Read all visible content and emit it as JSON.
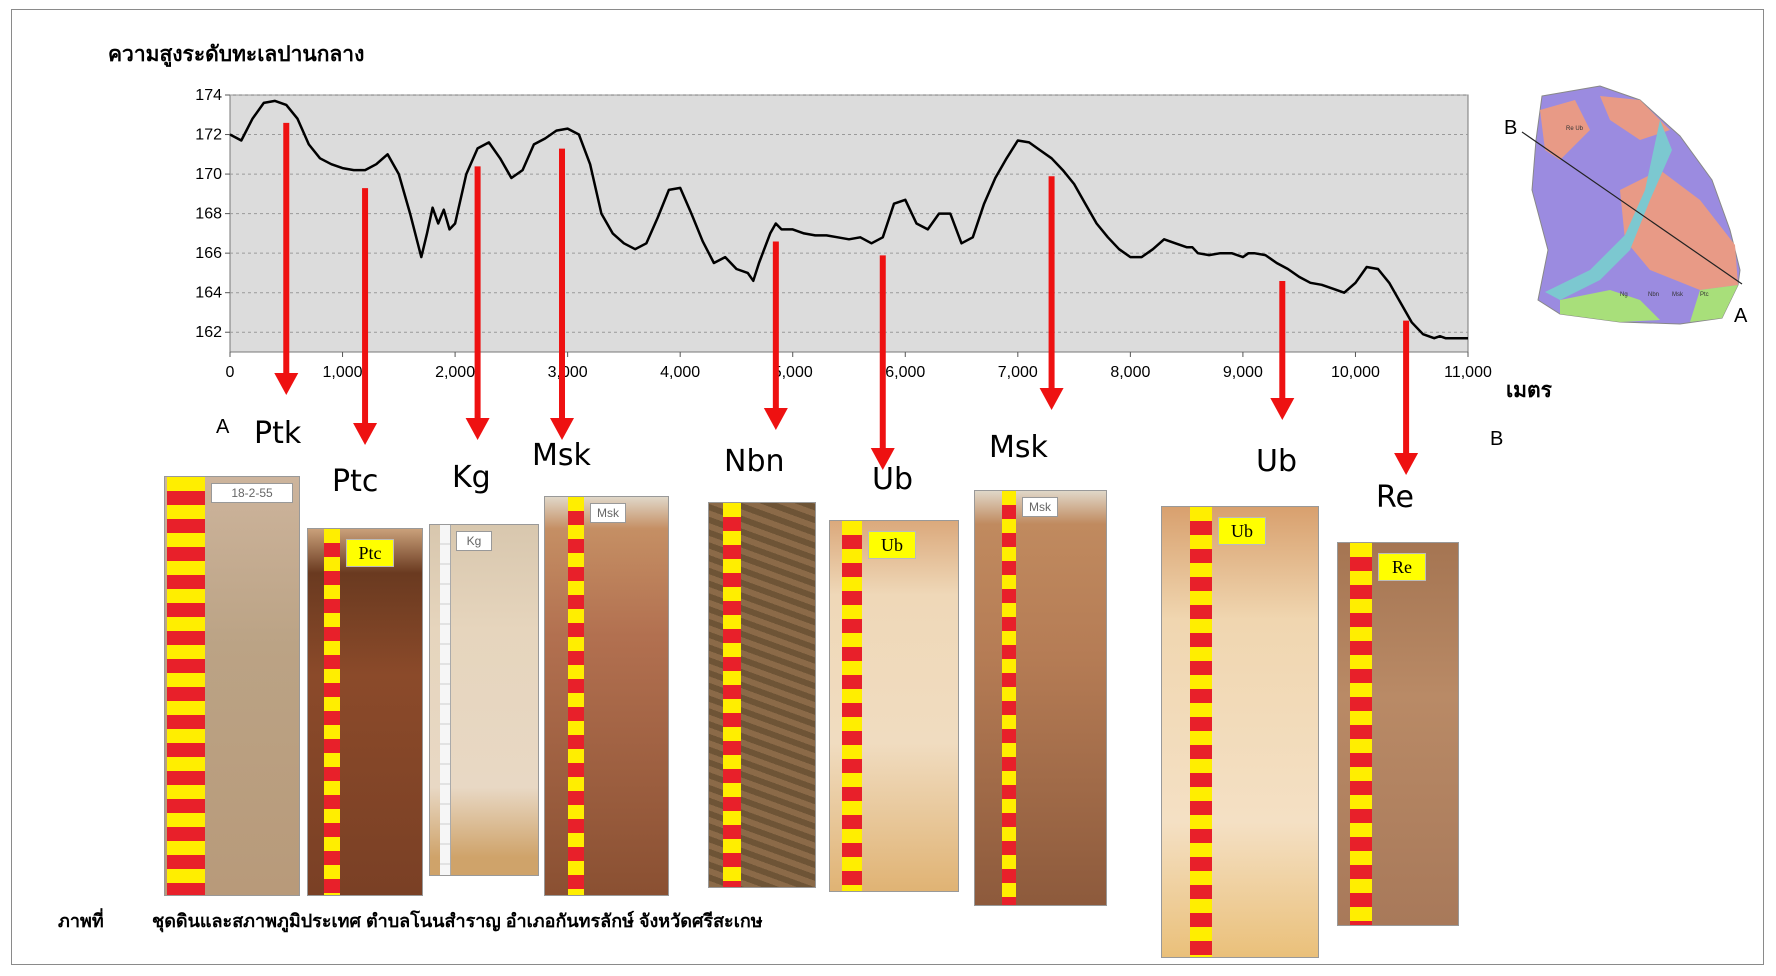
{
  "chart_data": {
    "type": "line",
    "ylabel": "ความสูงระดับทะเลปานกลาง",
    "xunit": "เมตร",
    "xlim": [
      0,
      11000
    ],
    "ylim": [
      161,
      174
    ],
    "x_ticks": [
      "0",
      "1,000",
      "2,000",
      "3,000",
      "4,000",
      "5,000",
      "6,000",
      "7,000",
      "8,000",
      "9,000",
      "10,000",
      "11,000"
    ],
    "y_ticks": [
      "162",
      "164",
      "166",
      "168",
      "170",
      "172",
      "174"
    ],
    "series": [
      {
        "x": [
          0,
          100,
          200,
          300,
          400,
          500,
          600,
          700,
          800,
          900,
          1000,
          1100,
          1200,
          1300,
          1400,
          1500,
          1600,
          1700,
          1750,
          1800,
          1850,
          1900,
          1950,
          2000,
          2100,
          2200,
          2300,
          2400,
          2500,
          2600,
          2700,
          2800,
          2900,
          3000,
          3100,
          3200,
          3300,
          3400,
          3500,
          3600,
          3700,
          3800,
          3900,
          4000,
          4100,
          4200,
          4300,
          4400,
          4500,
          4600,
          4650,
          4700,
          4800,
          4850,
          4900,
          5000,
          5100,
          5200,
          5300,
          5400,
          5500,
          5600,
          5700,
          5800,
          5900,
          6000,
          6100,
          6200,
          6300,
          6400,
          6500,
          6600,
          6700,
          6800,
          6900,
          7000,
          7100,
          7200,
          7300,
          7400,
          7500,
          7600,
          7700,
          7800,
          7900,
          8000,
          8100,
          8200,
          8300,
          8400,
          8500,
          8550,
          8600,
          8700,
          8800,
          8900,
          9000,
          9050,
          9100,
          9200,
          9300,
          9400,
          9500,
          9600,
          9700,
          9800,
          9900,
          10000,
          10100,
          10200,
          10300,
          10400,
          10500,
          10600,
          10700,
          10750,
          10800,
          10900,
          11000
        ],
        "y": [
          172.0,
          171.7,
          172.8,
          173.6,
          173.7,
          173.5,
          172.8,
          171.5,
          170.8,
          170.5,
          170.3,
          170.2,
          170.2,
          170.5,
          171.0,
          170.0,
          168.0,
          165.8,
          167.0,
          168.3,
          167.5,
          168.2,
          167.2,
          167.5,
          170.0,
          171.3,
          171.6,
          170.8,
          169.8,
          170.2,
          171.5,
          171.8,
          172.2,
          172.3,
          172.0,
          170.5,
          168.0,
          167.0,
          166.5,
          166.2,
          166.5,
          167.8,
          169.2,
          169.3,
          168.0,
          166.6,
          165.5,
          165.8,
          165.2,
          165.0,
          164.6,
          165.5,
          167.0,
          167.5,
          167.2,
          167.2,
          167.0,
          166.9,
          166.9,
          166.8,
          166.7,
          166.8,
          166.5,
          166.8,
          168.5,
          168.7,
          167.5,
          167.2,
          168.0,
          168.0,
          166.5,
          166.8,
          168.5,
          169.8,
          170.8,
          171.7,
          171.6,
          171.2,
          170.8,
          170.2,
          169.5,
          168.5,
          167.5,
          166.8,
          166.2,
          165.8,
          165.8,
          166.2,
          166.7,
          166.5,
          166.3,
          166.3,
          166.0,
          165.9,
          166.0,
          166.0,
          165.8,
          166.0,
          166.0,
          165.9,
          165.5,
          165.2,
          164.8,
          164.5,
          164.4,
          164.2,
          164.0,
          164.5,
          165.3,
          165.2,
          164.5,
          163.5,
          162.5,
          161.9,
          161.7,
          161.8,
          161.7,
          161.7,
          161.7
        ]
      }
    ],
    "arrows_x": [
      500,
      1200,
      2200,
      2950,
      4850,
      5800,
      7300,
      9350,
      10450
    ],
    "profile_ends": {
      "start": "A",
      "end": "B"
    }
  },
  "map": {
    "label_b": "B",
    "label_a": "A",
    "unit_labels": [
      "Re Ub",
      "Ng",
      "Nbn",
      "Msk",
      "Ptc"
    ]
  },
  "soils": [
    {
      "name": "Ptk",
      "ruler": "yellow-red",
      "tag_style": "white",
      "tag": "18-2-55"
    },
    {
      "name": "Ptc",
      "ruler": "yellow-red",
      "tag_style": "yellow",
      "tag": "Ptc"
    },
    {
      "name": "Kg",
      "ruler": "white",
      "tag_style": "white",
      "tag": "Kg"
    },
    {
      "name": "Msk",
      "ruler": "yellow-red",
      "tag_style": "white",
      "tag": "Msk"
    },
    {
      "name": "Nbn",
      "ruler": "yellow-red",
      "tag_style": "none",
      "tag": ""
    },
    {
      "name": "Ub",
      "ruler": "yellow-red",
      "tag_style": "yellow",
      "tag": "Ub"
    },
    {
      "name": "Msk",
      "ruler": "yellow-red",
      "tag_style": "white",
      "tag": "Msk"
    },
    {
      "name": "Ub",
      "ruler": "yellow-red",
      "tag_style": "yellow",
      "tag": "Ub"
    },
    {
      "name": "Re",
      "ruler": "yellow-red",
      "tag_style": "yellow",
      "tag": "Re"
    }
  ],
  "caption": {
    "label": "ภาพที่",
    "text": "ชุดดินและสภาพภูมิประเทศ ตำบลโนนสำราญ อำเภอกันทรลักษ์ จังหวัดศรีสะเกษ"
  },
  "colors": {
    "plot_bg": "#dcdcdc",
    "line": "#000000",
    "arrow": "#ee1111",
    "ruler_yellow": "#ffee00",
    "ruler_red": "#e8202a",
    "map_purple": "#9b8be0",
    "map_salmon": "#e89a86",
    "map_cyan": "#7cc8d0",
    "map_green": "#a8df7a"
  }
}
